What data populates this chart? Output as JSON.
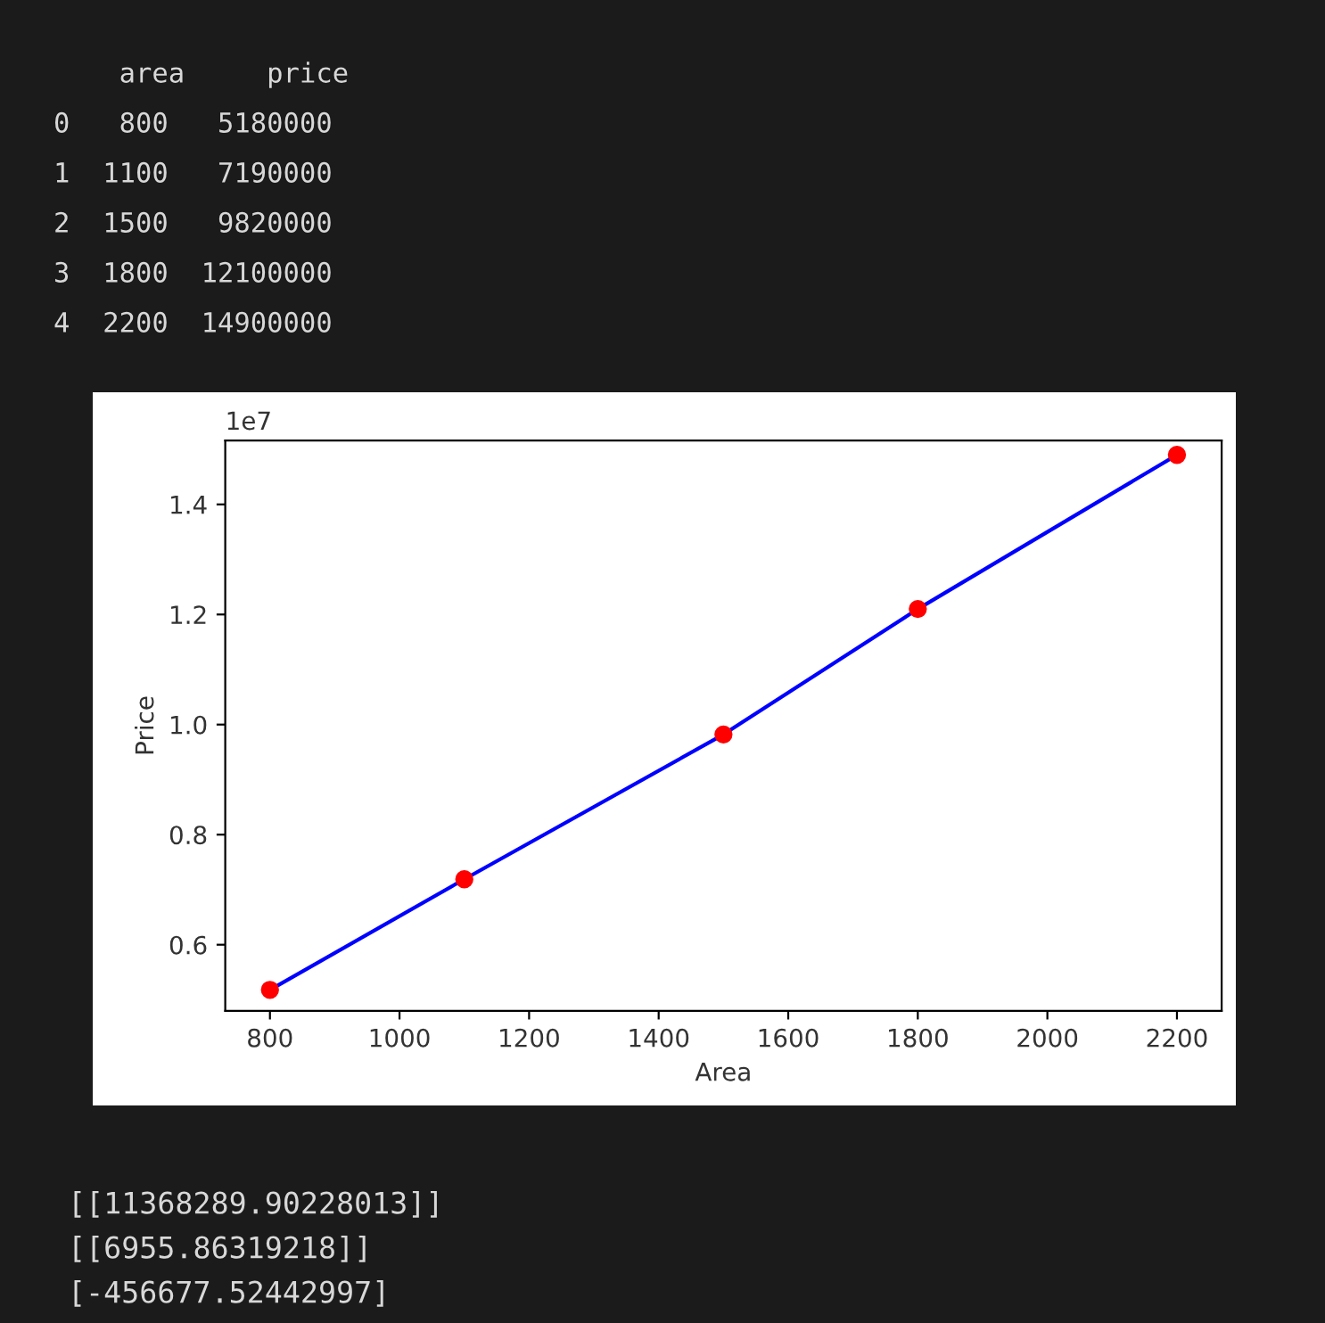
{
  "chart_data": {
    "type": "scatter",
    "xlabel": "Area",
    "ylabel": "Price",
    "x": [
      800,
      1100,
      1500,
      1800,
      2200
    ],
    "series": [
      {
        "type": "line",
        "color": "#0000ff",
        "values": [
          0.518,
          0.719,
          0.982,
          1.21,
          1.49
        ],
        "marker": "none",
        "line_style": "solid"
      },
      {
        "color": "#ff0000",
        "values": [
          0.518,
          0.719,
          0.982,
          1.21,
          1.49
        ],
        "marker": "circle"
      }
    ],
    "xlim": [
      731,
      2269
    ],
    "ylim": [
      0.48,
      1.516
    ],
    "xticks": [
      800,
      1000,
      1200,
      1400,
      1600,
      1800,
      2000,
      2200
    ],
    "yticks": [
      {
        "value": 0.6,
        "label": "0.6"
      },
      {
        "value": 0.8,
        "label": "0.8"
      },
      {
        "value": 1.0,
        "label": "1.0"
      },
      {
        "value": 1.2,
        "label": "1.2"
      },
      {
        "value": 1.4,
        "label": "1.4"
      }
    ],
    "grid": false,
    "legend": false,
    "annotations": [
      "    area     price",
      "0   800   5180000",
      "1  1100   7190000",
      "2  1500   9820000",
      "3  1800  12100000",
      "4  2200  14900000",
      "1e7",
      "[[11368289.90228013]]",
      "[[6955.86319218]]",
      "[-456677.52442997]"
    ]
  }
}
